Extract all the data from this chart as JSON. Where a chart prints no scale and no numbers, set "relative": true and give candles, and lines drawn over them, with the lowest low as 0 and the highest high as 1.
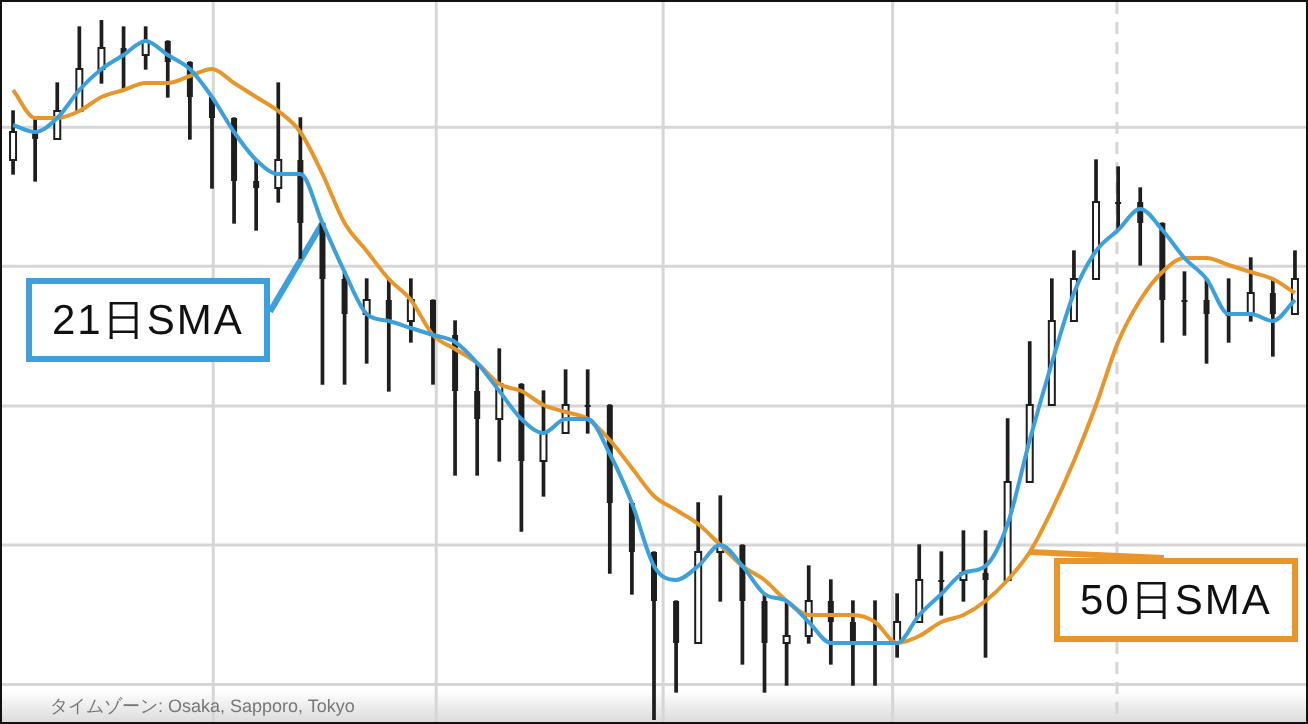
{
  "chart_data": {
    "type": "candlestick",
    "relative": true,
    "tick_labels": false,
    "grid": true,
    "legend": "bottom right",
    "marker": "none",
    "categories": [
      null,
      null,
      null,
      null,
      null,
      null,
      null,
      null,
      null,
      null,
      null,
      null,
      null,
      null,
      null,
      null,
      null,
      null,
      null,
      null,
      null,
      null,
      null,
      null,
      null,
      null,
      null,
      null,
      null,
      null,
      null,
      null,
      null,
      null,
      null,
      null,
      null,
      null,
      null,
      null,
      null,
      null,
      null,
      null,
      null,
      null,
      null,
      null,
      null,
      null,
      null,
      null,
      null,
      null,
      null,
      null,
      null,
      null,
      null
    ],
    "ohlc": [
      [
        0.8,
        0.87,
        0.78,
        0.84
      ],
      [
        0.84,
        0.86,
        0.77,
        0.83
      ],
      [
        0.83,
        0.91,
        0.83,
        0.87
      ],
      [
        0.87,
        0.99,
        0.87,
        0.93
      ],
      [
        0.93,
        1.0,
        0.91,
        0.96
      ],
      [
        0.96,
        0.99,
        0.9,
        0.95
      ],
      [
        0.95,
        0.99,
        0.93,
        0.97
      ],
      [
        0.97,
        0.97,
        0.89,
        0.94
      ],
      [
        0.94,
        0.94,
        0.83,
        0.89
      ],
      [
        0.89,
        0.89,
        0.76,
        0.86
      ],
      [
        0.86,
        0.86,
        0.71,
        0.77
      ],
      [
        0.77,
        0.8,
        0.7,
        0.76
      ],
      [
        0.76,
        0.91,
        0.74,
        0.8
      ],
      [
        0.8,
        0.86,
        0.66,
        0.71
      ],
      [
        0.71,
        0.71,
        0.48,
        0.63
      ],
      [
        0.63,
        0.64,
        0.48,
        0.58
      ],
      [
        0.58,
        0.63,
        0.51,
        0.6
      ],
      [
        0.6,
        0.63,
        0.47,
        0.57
      ],
      [
        0.57,
        0.63,
        0.54,
        0.6
      ],
      [
        0.6,
        0.6,
        0.48,
        0.55
      ],
      [
        0.55,
        0.57,
        0.35,
        0.47
      ],
      [
        0.47,
        0.51,
        0.35,
        0.43
      ],
      [
        0.43,
        0.53,
        0.37,
        0.48
      ],
      [
        0.48,
        0.48,
        0.27,
        0.37
      ],
      [
        0.37,
        0.47,
        0.32,
        0.41
      ],
      [
        0.41,
        0.5,
        0.41,
        0.45
      ],
      [
        0.45,
        0.5,
        0.41,
        0.45
      ],
      [
        0.45,
        0.45,
        0.21,
        0.31
      ],
      [
        0.31,
        0.31,
        0.18,
        0.24
      ],
      [
        0.24,
        0.24,
        0,
        0.17
      ],
      [
        0.17,
        0.17,
        0.04,
        0.11
      ],
      [
        0.11,
        0.31,
        0.11,
        0.24
      ],
      [
        0.24,
        0.32,
        0.17,
        0.25
      ],
      [
        0.25,
        0.25,
        0.08,
        0.17
      ],
      [
        0.17,
        0.18,
        0.04,
        0.11
      ],
      [
        0.11,
        0.17,
        0.05,
        0.12
      ],
      [
        0.12,
        0.22,
        0.11,
        0.17
      ],
      [
        0.17,
        0.2,
        0.08,
        0.14
      ],
      [
        0.14,
        0.17,
        0.05,
        0.11
      ],
      [
        0.11,
        0.17,
        0.05,
        0.11
      ],
      [
        0.11,
        0.18,
        0.09,
        0.14
      ],
      [
        0.14,
        0.25,
        0.14,
        0.2
      ],
      [
        0.2,
        0.24,
        0.15,
        0.2
      ],
      [
        0.2,
        0.27,
        0.17,
        0.21
      ],
      [
        0.21,
        0.27,
        0.09,
        0.2
      ],
      [
        0.2,
        0.43,
        0.2,
        0.34
      ],
      [
        0.34,
        0.54,
        0.34,
        0.45
      ],
      [
        0.45,
        0.63,
        0.45,
        0.57
      ],
      [
        0.57,
        0.67,
        0.57,
        0.63
      ],
      [
        0.63,
        0.8,
        0.63,
        0.74
      ],
      [
        0.74,
        0.79,
        0.7,
        0.74
      ],
      [
        0.74,
        0.76,
        0.65,
        0.71
      ],
      [
        0.71,
        0.71,
        0.54,
        0.6
      ],
      [
        0.6,
        0.64,
        0.55,
        0.6
      ],
      [
        0.6,
        0.63,
        0.51,
        0.58
      ],
      [
        0.58,
        0.63,
        0.54,
        0.58
      ],
      [
        0.58,
        0.66,
        0.57,
        0.61
      ],
      [
        0.61,
        0.63,
        0.52,
        0.58
      ],
      [
        0.58,
        0.67,
        0.58,
        0.63
      ]
    ],
    "series": [
      {
        "name": "21日SMA",
        "type": "line",
        "color": "#3ca0dc",
        "values": [
          0.85,
          0.84,
          0.86,
          0.9,
          0.93,
          0.95,
          0.97,
          0.95,
          0.93,
          0.89,
          0.84,
          0.8,
          0.78,
          0.78,
          0.71,
          0.64,
          0.58,
          0.57,
          0.56,
          0.55,
          0.54,
          0.51,
          0.47,
          0.43,
          0.41,
          0.43,
          0.43,
          0.38,
          0.31,
          0.22,
          0.2,
          0.22,
          0.25,
          0.22,
          0.18,
          0.17,
          0.14,
          0.11,
          0.11,
          0.11,
          0.11,
          0.15,
          0.18,
          0.21,
          0.22,
          0.28,
          0.4,
          0.51,
          0.61,
          0.67,
          0.7,
          0.73,
          0.7,
          0.66,
          0.63,
          0.58,
          0.58,
          0.57,
          0.6
        ]
      },
      {
        "name": "50日SMA",
        "type": "line",
        "color": "#e8962a",
        "values": [
          0.9,
          0.86,
          0.86,
          0.87,
          0.89,
          0.9,
          0.91,
          0.91,
          0.92,
          0.93,
          0.91,
          0.89,
          0.87,
          0.84,
          0.78,
          0.71,
          0.67,
          0.63,
          0.6,
          0.55,
          0.53,
          0.51,
          0.48,
          0.47,
          0.45,
          0.44,
          0.43,
          0.4,
          0.36,
          0.32,
          0.3,
          0.28,
          0.25,
          0.22,
          0.2,
          0.17,
          0.15,
          0.15,
          0.15,
          0.14,
          0.11,
          0.12,
          0.14,
          0.15,
          0.17,
          0.2,
          0.24,
          0.3,
          0.37,
          0.45,
          0.54,
          0.6,
          0.64,
          0.66,
          0.66,
          0.65,
          0.64,
          0.63,
          0.61
        ]
      }
    ],
    "annotations": [
      "タイムゾーン: Osaka, Sapporo, Tokyo"
    ]
  }
}
